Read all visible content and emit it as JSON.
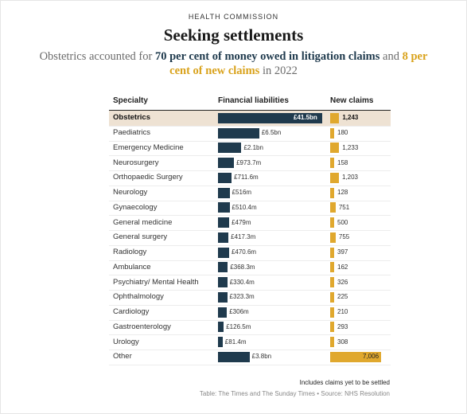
{
  "header": {
    "kicker": "HEALTH COMMISSION",
    "title": "Seeking settlements",
    "subtitle_parts": [
      {
        "text": "Obstetrics accounted for ",
        "style": "plain"
      },
      {
        "text": "70 per cent of money owed in litigation claims",
        "style": "navy"
      },
      {
        "text": " and ",
        "style": "plain"
      },
      {
        "text": "8 per cent of new claims",
        "style": "gold"
      },
      {
        "text": " in 2022",
        "style": "plain"
      }
    ]
  },
  "colors": {
    "liabilities": "#1f3a4d",
    "claims": "#e0a82e",
    "highlight": "#eee2d3"
  },
  "chart_data": {
    "type": "table",
    "columns": [
      "Specialty",
      "Financial liabilities",
      "New claims"
    ],
    "rows": [
      {
        "specialty": "Obstetrics",
        "liability": 41500,
        "liability_label": "£41.5bn",
        "claims": 1243,
        "claims_label": "1,243",
        "highlight": true
      },
      {
        "specialty": "Paediatrics",
        "liability": 6500,
        "liability_label": "£6.5bn",
        "claims": 180,
        "claims_label": "180"
      },
      {
        "specialty": "Emergency Medicine",
        "liability": 2100,
        "liability_label": "£2.1bn",
        "claims": 1233,
        "claims_label": "1,233"
      },
      {
        "specialty": "Neurosurgery",
        "liability": 973.7,
        "liability_label": "£973.7m",
        "claims": 158,
        "claims_label": "158"
      },
      {
        "specialty": "Orthopaedic Surgery",
        "liability": 711.6,
        "liability_label": "£711.6m",
        "claims": 1203,
        "claims_label": "1,203"
      },
      {
        "specialty": "Neurology",
        "liability": 516,
        "liability_label": "£516m",
        "claims": 128,
        "claims_label": "128"
      },
      {
        "specialty": "Gynaecology",
        "liability": 510.4,
        "liability_label": "£510.4m",
        "claims": 751,
        "claims_label": "751"
      },
      {
        "specialty": "General medicine",
        "liability": 479,
        "liability_label": "£479m",
        "claims": 500,
        "claims_label": "500"
      },
      {
        "specialty": "General surgery",
        "liability": 417.3,
        "liability_label": "£417.3m",
        "claims": 755,
        "claims_label": "755"
      },
      {
        "specialty": "Radiology",
        "liability": 470.6,
        "liability_label": "£470.6m",
        "claims": 397,
        "claims_label": "397"
      },
      {
        "specialty": "Ambulance",
        "liability": 368.3,
        "liability_label": "£368.3m",
        "claims": 162,
        "claims_label": "162"
      },
      {
        "specialty": "Psychiatry/ Mental Health",
        "liability": 330.4,
        "liability_label": "£330.4m",
        "claims": 326,
        "claims_label": "326"
      },
      {
        "specialty": "Ophthalmology",
        "liability": 323.3,
        "liability_label": "£323.3m",
        "claims": 225,
        "claims_label": "225"
      },
      {
        "specialty": "Cardiology",
        "liability": 306,
        "liability_label": "£306m",
        "claims": 210,
        "claims_label": "210"
      },
      {
        "specialty": "Gastroenterology",
        "liability": 126.5,
        "liability_label": "£126.5m",
        "claims": 293,
        "claims_label": "293"
      },
      {
        "specialty": "Urology",
        "liability": 81.4,
        "liability_label": "£81.4m",
        "claims": 308,
        "claims_label": "308"
      },
      {
        "specialty": "Other",
        "liability": 3800,
        "liability_label": "£3.8bn",
        "claims": 7006,
        "claims_label": "7,006"
      }
    ],
    "liability_max": 41500,
    "claims_max": 7006,
    "footnote": "Includes claims yet to be settled",
    "source": "Table: The Times and The Sunday Times • Source: NHS Resolution"
  }
}
